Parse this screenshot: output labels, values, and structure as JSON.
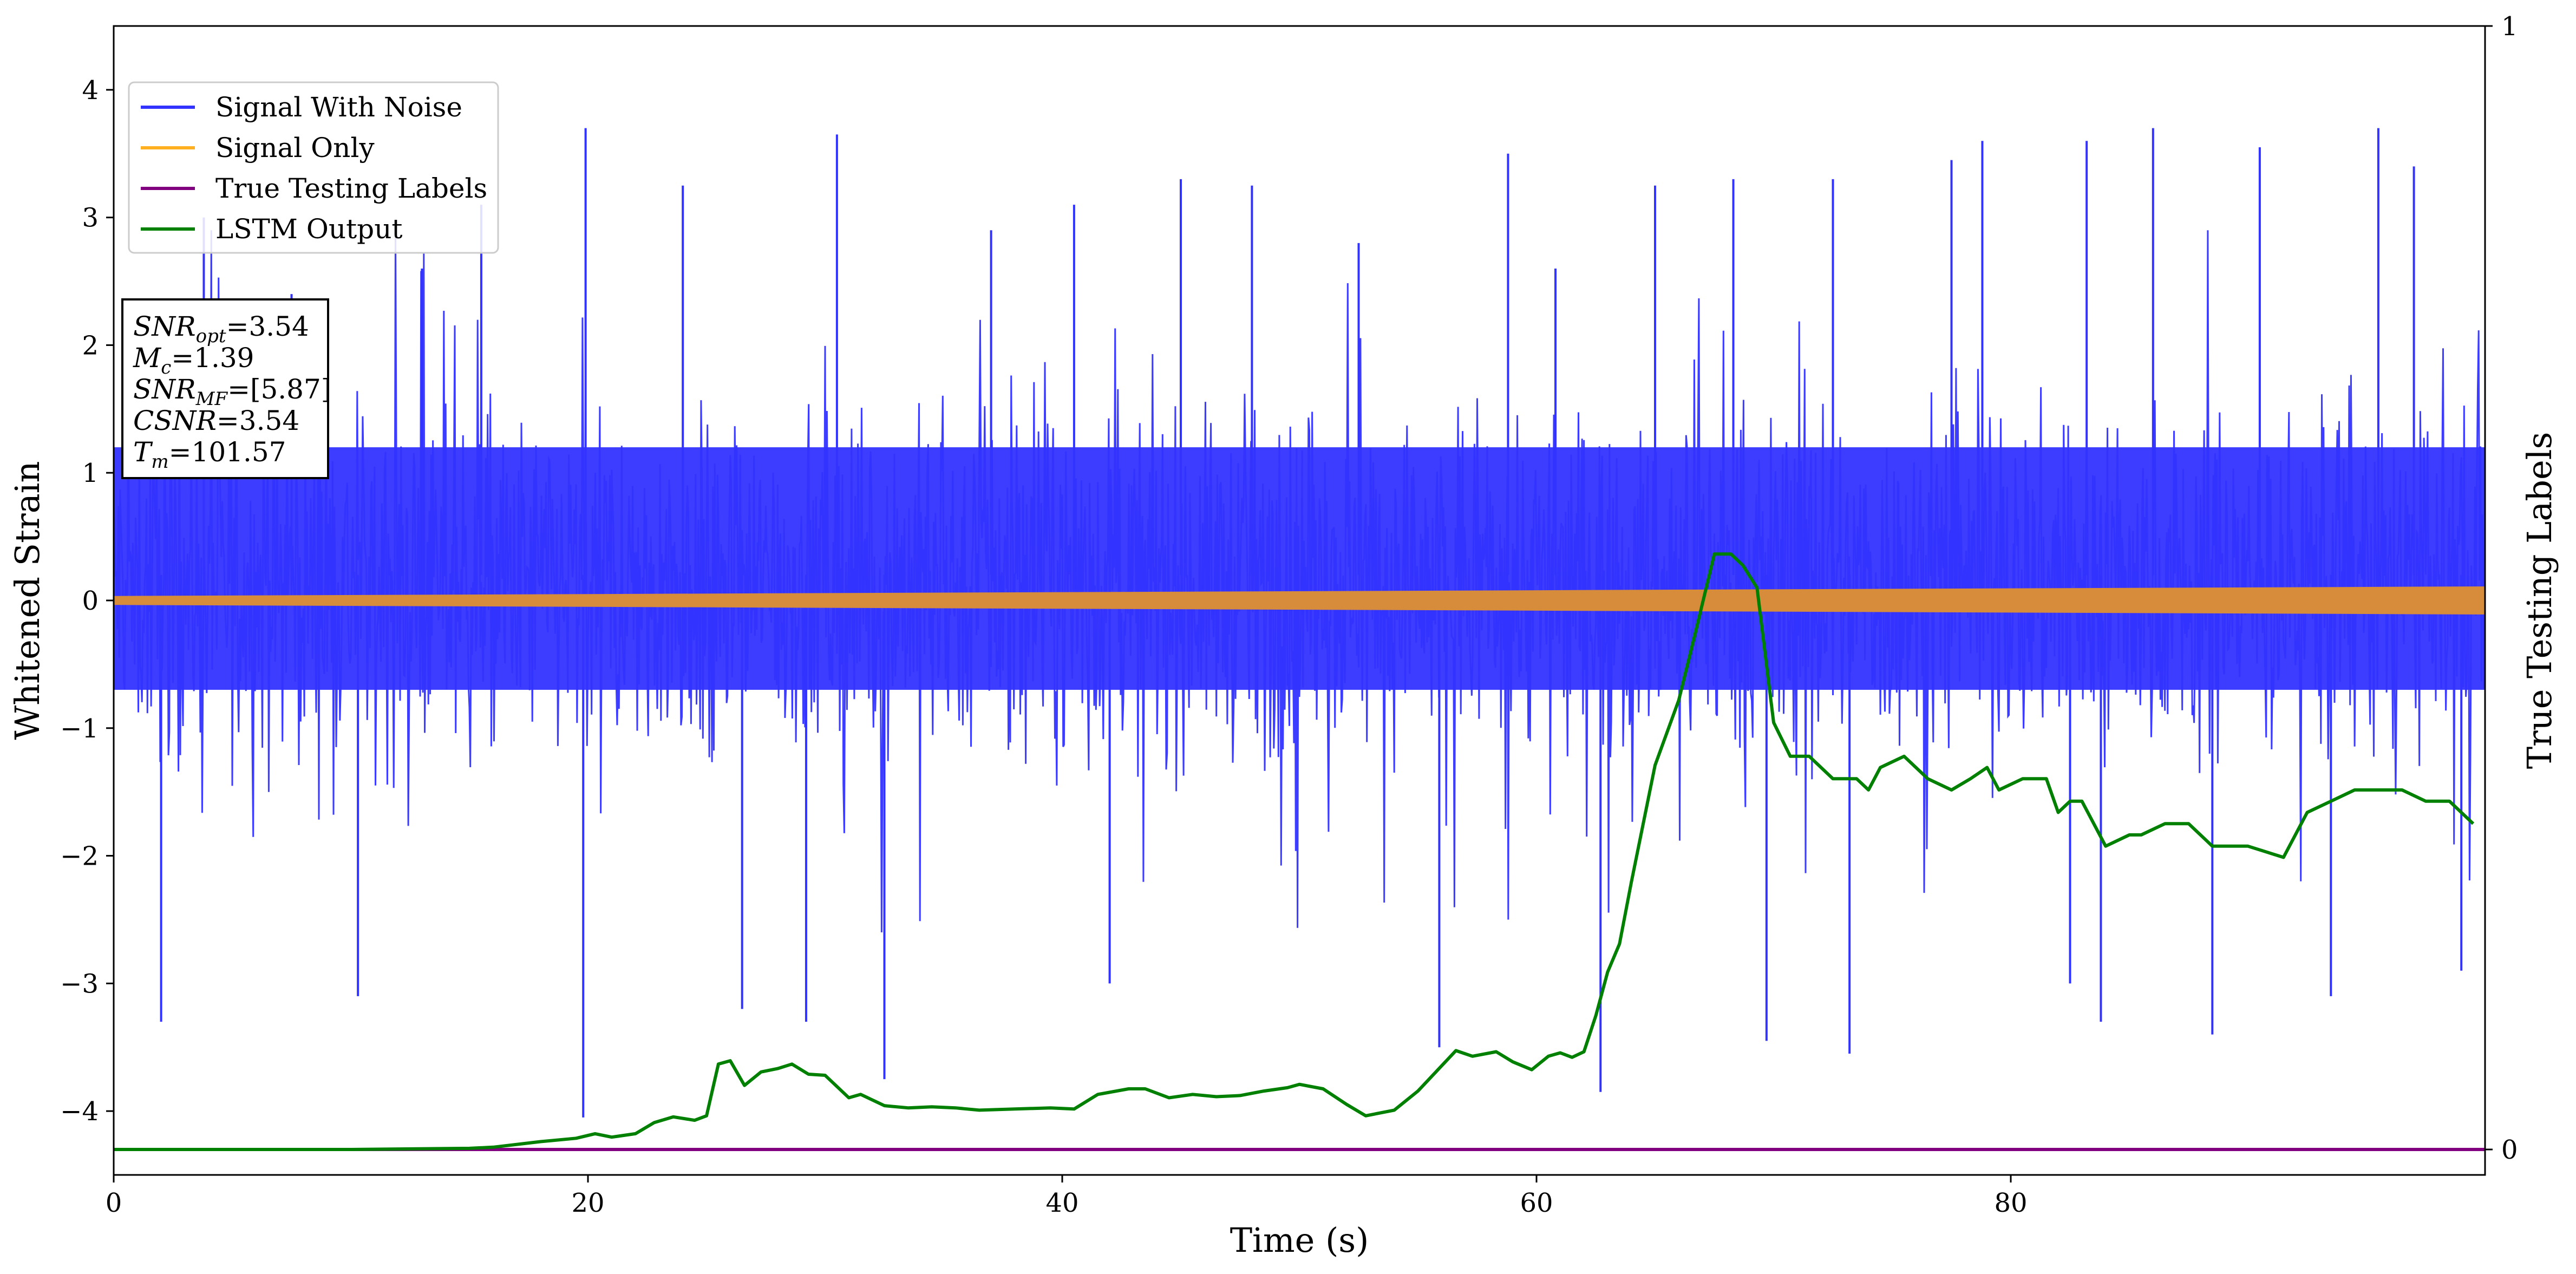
{
  "chart_data": {
    "type": "line",
    "xlabel": "Time (s)",
    "ylabel": "Whitened Strain",
    "y2label": "True Testing Labels",
    "xlim": [
      0,
      100
    ],
    "ylim": [
      -4.5,
      4.5
    ],
    "y2lim": [
      0,
      1
    ],
    "x_ticks": [
      0,
      20,
      40,
      60,
      80
    ],
    "x_tick_labels": [
      "0",
      "20",
      "40",
      "60",
      "80"
    ],
    "y_ticks": [
      -4,
      -3,
      -2,
      -1,
      0,
      1,
      2,
      3,
      4
    ],
    "y_tick_labels": [
      "−4",
      "−3",
      "−2",
      "−1",
      "0",
      "1",
      "2",
      "3",
      "4"
    ],
    "y2_ticks": [
      0,
      1
    ],
    "y2_tick_labels": [
      "0",
      "1"
    ],
    "grid": false,
    "legend": {
      "placement": "upper-left",
      "entries": [
        {
          "label": "Signal With Noise",
          "color": "#3333ff"
        },
        {
          "label": "Signal Only",
          "color": "#ffb020"
        },
        {
          "label": "True Testing Labels",
          "color": "#800080"
        },
        {
          "label": "LSTM Output",
          "color": "#008000"
        }
      ]
    },
    "annotation": {
      "lines": [
        {
          "name": "SNR",
          "sub": "opt",
          "value": "=3.54"
        },
        {
          "name": "M",
          "sub": "c",
          "value": "=1.39"
        },
        {
          "name": "SNR",
          "sub": "MF",
          "value": "=[5.87]"
        },
        {
          "name": "CSNR",
          "sub": "",
          "value": "=3.54"
        },
        {
          "name": "T",
          "sub": "m",
          "value": "=101.57"
        }
      ]
    },
    "series": [
      {
        "name": "Signal With Noise",
        "color": "#3333ff",
        "axis": "left",
        "style": "noise",
        "envelope": {
          "typical_low": -1.0,
          "typical_high": 1.0,
          "dense_band": [
            -0.7,
            1.2
          ]
        },
        "spikes": [
          {
            "x": 2.0,
            "y": -3.3
          },
          {
            "x": 3.8,
            "y": 3.0
          },
          {
            "x": 7.5,
            "y": 2.4
          },
          {
            "x": 10.3,
            "y": -3.1
          },
          {
            "x": 13.0,
            "y": 2.6
          },
          {
            "x": 15.5,
            "y": 3.1
          },
          {
            "x": 19.8,
            "y": -4.05
          },
          {
            "x": 19.9,
            "y": 3.7
          },
          {
            "x": 24.0,
            "y": 3.25
          },
          {
            "x": 26.5,
            "y": -3.2
          },
          {
            "x": 29.2,
            "y": -3.3
          },
          {
            "x": 30.5,
            "y": 3.65
          },
          {
            "x": 32.5,
            "y": -3.75
          },
          {
            "x": 37.0,
            "y": 2.9
          },
          {
            "x": 40.5,
            "y": 3.1
          },
          {
            "x": 42.0,
            "y": -3.0
          },
          {
            "x": 45.0,
            "y": 3.3
          },
          {
            "x": 48.0,
            "y": 3.25
          },
          {
            "x": 52.5,
            "y": 2.8
          },
          {
            "x": 55.9,
            "y": -3.5
          },
          {
            "x": 58.8,
            "y": 3.5
          },
          {
            "x": 60.8,
            "y": 2.6
          },
          {
            "x": 62.7,
            "y": -3.85
          },
          {
            "x": 65.0,
            "y": 3.25
          },
          {
            "x": 68.3,
            "y": 3.3
          },
          {
            "x": 69.7,
            "y": -3.45
          },
          {
            "x": 72.5,
            "y": 3.3
          },
          {
            "x": 73.2,
            "y": -3.55
          },
          {
            "x": 77.5,
            "y": 3.45
          },
          {
            "x": 78.8,
            "y": 3.6
          },
          {
            "x": 82.5,
            "y": -3.0
          },
          {
            "x": 83.2,
            "y": 3.6
          },
          {
            "x": 83.8,
            "y": -3.3
          },
          {
            "x": 86.0,
            "y": 3.7
          },
          {
            "x": 88.5,
            "y": -3.4
          },
          {
            "x": 90.5,
            "y": 3.55
          },
          {
            "x": 93.5,
            "y": -3.1
          },
          {
            "x": 95.5,
            "y": 3.7
          },
          {
            "x": 97.0,
            "y": 3.4
          },
          {
            "x": 99.0,
            "y": -2.9
          }
        ]
      },
      {
        "name": "Signal Only",
        "color": "#ffb020",
        "axis": "left",
        "style": "band",
        "x": [
          0,
          100
        ],
        "amplitude": [
          0.035,
          0.11
        ]
      },
      {
        "name": "True Testing Labels",
        "color": "#800080",
        "axis": "right",
        "x": [
          0,
          100
        ],
        "y": [
          0,
          0
        ]
      },
      {
        "name": "LSTM Output",
        "color": "#008000",
        "axis": "right",
        "x": [
          0,
          10,
          15,
          16,
          18,
          19.5,
          20.3,
          21,
          22,
          22.8,
          23.6,
          24.5,
          25,
          25.5,
          26,
          26.6,
          27.3,
          28,
          28.6,
          29.3,
          30,
          31,
          31.5,
          32.5,
          33.5,
          34.5,
          35.5,
          36.5,
          38,
          39.5,
          40.5,
          41.5,
          42.8,
          43.5,
          44.5,
          45.5,
          46.5,
          47.5,
          48.5,
          49.5,
          50,
          51,
          52,
          52.8,
          54,
          55,
          55.8,
          56.6,
          57.3,
          58.3,
          59,
          59.8,
          60.5,
          61,
          61.5,
          62,
          62.5,
          63,
          63.5,
          64,
          65,
          66,
          66.7,
          67.5,
          68.2,
          68.7,
          69.3,
          70,
          70.7,
          71.5,
          72.5,
          73.5,
          74,
          74.5,
          75.5,
          76.5,
          77.5,
          78.3,
          79,
          79.5,
          80.5,
          81.5,
          82,
          82.5,
          83,
          84,
          85,
          85.5,
          86.5,
          87.5,
          88.5,
          89.5,
          90,
          91.5,
          92,
          92.5,
          93.5,
          94.5,
          95.5,
          96.5,
          97.5,
          98.5,
          99.5
        ],
        "y": [
          0,
          0,
          0.001,
          0.002,
          0.007,
          0.01,
          0.014,
          0.011,
          0.014,
          0.024,
          0.029,
          0.026,
          0.03,
          0.076,
          0.079,
          0.057,
          0.069,
          0.072,
          0.076,
          0.067,
          0.066,
          0.046,
          0.049,
          0.039,
          0.037,
          0.038,
          0.037,
          0.035,
          0.036,
          0.037,
          0.036,
          0.049,
          0.054,
          0.054,
          0.046,
          0.049,
          0.047,
          0.048,
          0.052,
          0.055,
          0.058,
          0.054,
          0.04,
          0.03,
          0.035,
          0.052,
          0.07,
          0.088,
          0.083,
          0.087,
          0.078,
          0.071,
          0.083,
          0.086,
          0.082,
          0.087,
          0.119,
          0.158,
          0.183,
          0.238,
          0.342,
          0.4,
          0.46,
          0.53,
          0.53,
          0.52,
          0.5,
          0.38,
          0.35,
          0.35,
          0.33,
          0.33,
          0.32,
          0.34,
          0.35,
          0.33,
          0.32,
          0.33,
          0.34,
          0.32,
          0.33,
          0.33,
          0.3,
          0.31,
          0.31,
          0.27,
          0.28,
          0.28,
          0.29,
          0.29,
          0.27,
          0.27,
          0.27,
          0.26,
          0.28,
          0.3,
          0.31,
          0.32,
          0.32,
          0.32,
          0.31,
          0.31,
          0.29
        ]
      }
    ]
  }
}
